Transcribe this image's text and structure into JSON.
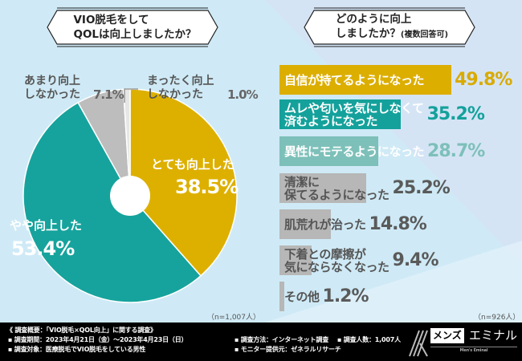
{
  "left": {
    "question": "VIO脱毛をして\nQOLは向上しましたか？",
    "n_label": "（n=1,007人）"
  },
  "right": {
    "question": "どのように向上\nしましたか？",
    "question_note": "(複数回答可)",
    "n_label": "（n=926人）"
  },
  "chart_data": [
    {
      "type": "pie",
      "donut": true,
      "start": "top",
      "direction": "clockwise",
      "slices": [
        {
          "label": "とても向上した",
          "value": 38.5,
          "display": "38.5%",
          "color": "#ddb000"
        },
        {
          "label": "やや向上した",
          "value": 53.4,
          "display": "53.4%",
          "color": "#16a39d"
        },
        {
          "label": "あまり向上\nしなかった",
          "value": 7.1,
          "display": "7.1%",
          "color": "#bdbdbd"
        },
        {
          "label": "まったく向上\nしなかった",
          "value": 1.0,
          "display": "1.0%",
          "color": "#e6e6e6"
        }
      ]
    },
    {
      "type": "bar",
      "orientation": "horizontal",
      "unit": "%",
      "categories": [
        "自信が持てるようになった",
        "ムレや匂いを気にしなくて\n済むようになった",
        "異性にモテるようになった",
        "清潔に\n保てるようになった",
        "肌荒れが治った",
        "下着との摩擦が\n気にならなくなった",
        "その他"
      ],
      "values": [
        49.8,
        35.2,
        28.7,
        25.2,
        14.8,
        9.4,
        1.2
      ],
      "display": [
        "49.8%",
        "35.2%",
        "28.7%",
        "25.2%",
        "14.8%",
        "9.4%",
        "1.2%"
      ],
      "colors": [
        "#dcae00",
        "#14a19b",
        "#7dc0b9",
        "#b7b7b7",
        "#b7b7b7",
        "#b7b7b7",
        "#b7b7b7"
      ],
      "text_colors": [
        "#ffffff",
        "#ffffff",
        "#ffffff",
        "#555555",
        "#555555",
        "#555555",
        "#555555"
      ],
      "value_colors": [
        "#d9ab00",
        "#14a19b",
        "#7dc0b9",
        "#5a5a5a",
        "#5a5a5a",
        "#5a5a5a",
        "#5a5a5a"
      ]
    }
  ],
  "footer": {
    "title": "《 調査概要：「VIO脱毛×QOL向上」に関する調査》",
    "period": "▪ 調査期間：2023年4月21日（金）～2023年4月23日（日）",
    "target": "▪ 調査対象：医療脱毛でVIO脱毛をしている男性",
    "method": "▪ 調査方法：インターネット調査",
    "provider": "▪ モニター提供元：ゼネラルリサーチ",
    "count": "▪ 調査人数：1,007人",
    "logo_left": "メンズ",
    "logo_right": "エミナル",
    "logo_sub": "Men's Eminal"
  }
}
